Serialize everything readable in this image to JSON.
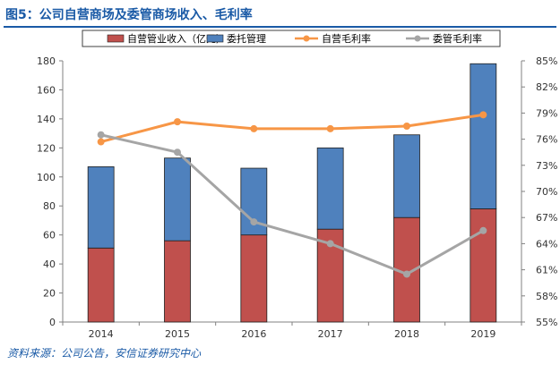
{
  "figure": {
    "title": "图5：公司自营商场及委管商场收入、毛利率",
    "source": "资料来源：公司公告，安信证券研究中心"
  },
  "colors": {
    "title": "#1a5aa6",
    "self_revenue": "#c0504d",
    "managed_revenue": "#4f81bd",
    "self_margin": "#f79646",
    "managed_margin": "#a5a5a5"
  },
  "chart_data": {
    "type": "bar",
    "stacked": true,
    "categories": [
      "2014",
      "2015",
      "2016",
      "2017",
      "2018",
      "2019"
    ],
    "series": [
      {
        "name": "自营管业收入（亿元）",
        "type": "bar",
        "axis": "left",
        "color": "#c0504d",
        "values": [
          51,
          56,
          60,
          64,
          72,
          78
        ]
      },
      {
        "name": "委托管理",
        "type": "bar",
        "axis": "left",
        "color": "#4f81bd",
        "values": [
          56,
          57,
          46,
          56,
          57,
          100
        ]
      },
      {
        "name": "自营毛利率",
        "type": "line",
        "axis": "right",
        "color": "#f79646",
        "values": [
          75.7,
          78.0,
          77.2,
          77.2,
          77.5,
          78.8
        ]
      },
      {
        "name": "委管毛利率",
        "type": "line",
        "axis": "right",
        "color": "#a5a5a5",
        "values": [
          76.5,
          74.5,
          66.5,
          64.0,
          60.5,
          65.5
        ]
      }
    ],
    "y_left": {
      "min": 0,
      "max": 180,
      "ticks": [
        0,
        20,
        40,
        60,
        80,
        100,
        120,
        140,
        160,
        180
      ]
    },
    "y_right": {
      "min": 55,
      "max": 85,
      "ticks": [
        "55%",
        "58%",
        "61%",
        "64%",
        "67%",
        "70%",
        "73%",
        "76%",
        "79%",
        "82%",
        "85%"
      ]
    },
    "legend_position": "top",
    "grid": false
  }
}
